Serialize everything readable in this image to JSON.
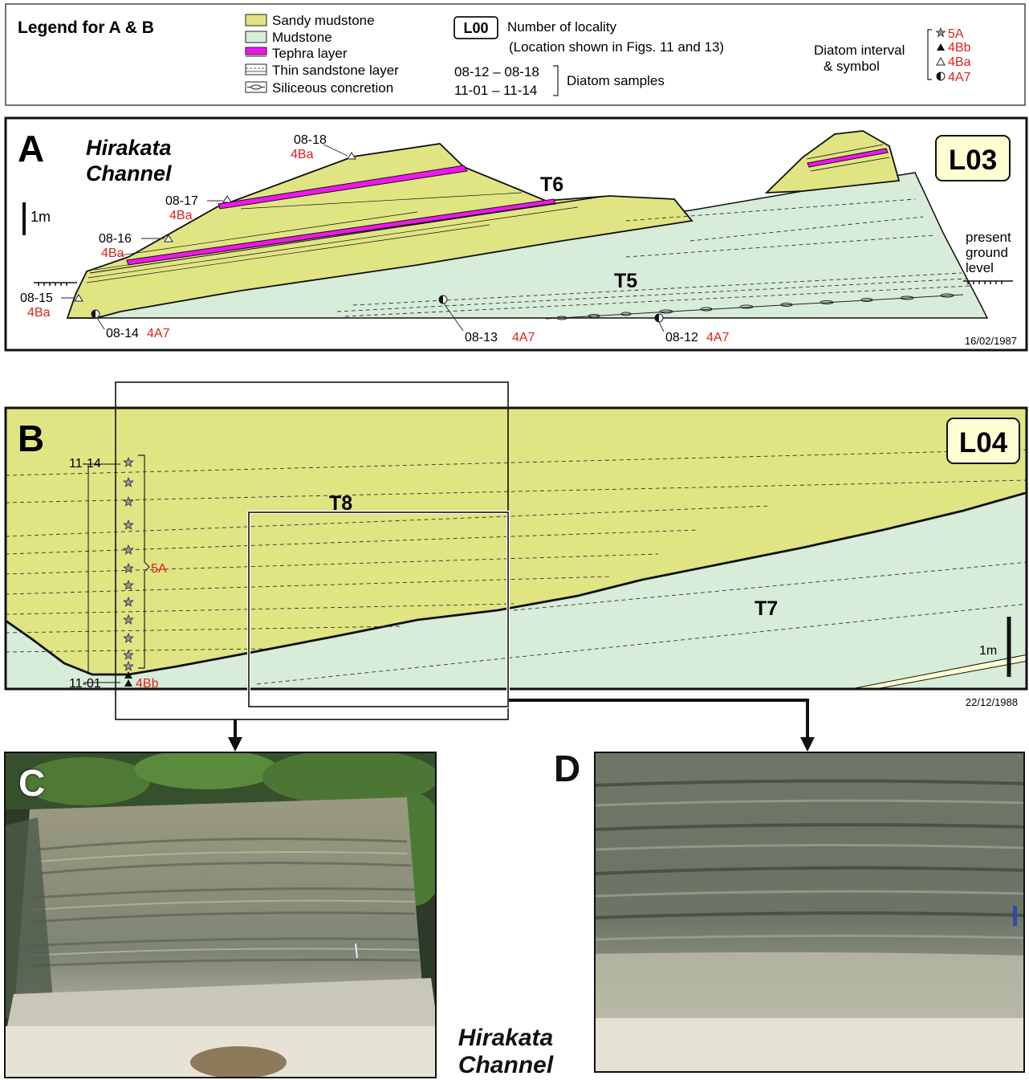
{
  "legend": {
    "title": "Legend for A & B",
    "sandy_mudstone": "Sandy mudstone",
    "mudstone": "Mudstone",
    "tephra": "Tephra layer",
    "thin_sandstone": "Thin sandstone layer",
    "concretion": "Siliceous concretion",
    "locality_box": "L00",
    "locality_text": "Number of locality",
    "locality_note": "(Location shown in Figs. 11 and 13)",
    "samples_range_1": "08-12 – 08-18",
    "samples_range_2": "11-01 – 11-14",
    "samples_text": "Diatom samples",
    "diatom_line1": "Diatom interval",
    "diatom_line2": "& symbol",
    "diatom_5a": "5A",
    "diatom_4bb": "4Bb",
    "diatom_4ba": "4Ba",
    "diatom_4a7": "4A7"
  },
  "panel_a": {
    "letter": "A",
    "channel_line1": "Hirakata",
    "channel_line2": "Channel",
    "locality": "L03",
    "scale": "1m",
    "unit_t5": "T5",
    "unit_t6": "T6",
    "ground_line1": "present",
    "ground_line2": "ground",
    "ground_line3": "level",
    "date": "16/02/1987",
    "samples": [
      {
        "id": "08-18",
        "zone": "4Ba"
      },
      {
        "id": "08-17",
        "zone": "4Ba"
      },
      {
        "id": "08-16",
        "zone": "4Ba"
      },
      {
        "id": "08-15",
        "zone": "4Ba"
      },
      {
        "id": "08-14",
        "zone": "4A7"
      },
      {
        "id": "08-13",
        "zone": "4A7"
      },
      {
        "id": "08-12",
        "zone": "4A7"
      }
    ]
  },
  "panel_b": {
    "letter": "B",
    "locality": "L04",
    "scale": "1m",
    "unit_t7": "T7",
    "unit_t8": "T8",
    "sample_top": "11-14",
    "sample_bottom": "11-01",
    "zone_upper": "5A",
    "zone_lower": "4Bb",
    "date": "22/12/1988"
  },
  "panel_c": {
    "letter": "C"
  },
  "panel_d": {
    "letter": "D"
  },
  "caption": {
    "line1": "Hirakata",
    "line2": "Channel"
  },
  "colors": {
    "sandy_mudstone": "#e1e482",
    "mudstone": "#d7ecd9",
    "tephra": "#ee17ee",
    "zone_text": "#e0201c"
  }
}
